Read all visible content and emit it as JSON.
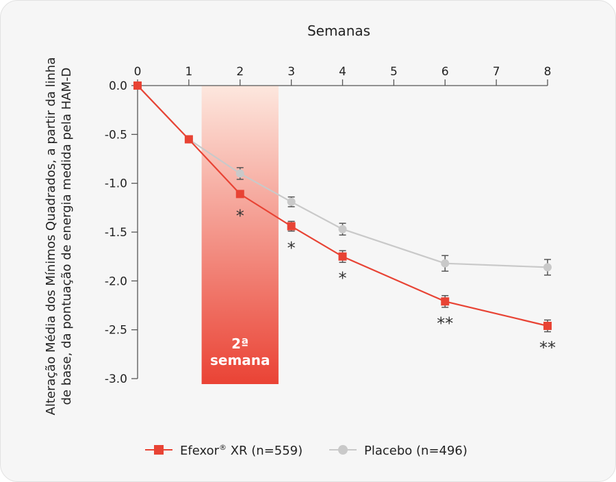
{
  "chart_data": {
    "type": "line",
    "xlabel": "Semanas",
    "ylabel_lines": [
      "Alteração Média dos Mínimos Quadrados, a partir da linha",
      "de base, da pontuação de energia medida pela HAM-D"
    ],
    "x_ticks": [
      0,
      1,
      2,
      3,
      4,
      5,
      6,
      7,
      8
    ],
    "y_ticks": [
      "0.0",
      "-0.5",
      "-1.0",
      "-1.5",
      "-2.0",
      "-2.5",
      "-3.0"
    ],
    "xlim": [
      0,
      8
    ],
    "ylim": [
      -3.0,
      0.0
    ],
    "grid": false,
    "legend_position": "bottom-center",
    "highlight": {
      "x_range": [
        1.25,
        2.75
      ],
      "label_line1": "2ª",
      "label_line2": "semana",
      "color_top": "#fde7de",
      "color_bottom": "#ea4335"
    },
    "series": [
      {
        "name": "Efexor® XR (n=559)",
        "legend_label": "Efexor",
        "legend_sup": "®",
        "legend_suffix": " XR (n=559)",
        "color": "#e84334",
        "marker": "square",
        "x": [
          0,
          1,
          2,
          3,
          4,
          6,
          8
        ],
        "y": [
          0.0,
          -0.55,
          -1.11,
          -1.44,
          -1.75,
          -2.21,
          -2.46
        ],
        "err": [
          0,
          0,
          0,
          0.05,
          0.06,
          0.06,
          0.06
        ]
      },
      {
        "name": "Placebo (n=496)",
        "legend_label": "Placebo (n=496)",
        "legend_sup": "",
        "legend_suffix": "",
        "color": "#c9c9c9",
        "marker": "circle",
        "x": [
          0,
          1,
          2,
          3,
          4,
          6,
          8
        ],
        "y": [
          0.0,
          -0.55,
          -0.9,
          -1.19,
          -1.47,
          -1.82,
          -1.86
        ],
        "err": [
          0,
          0,
          0.06,
          0.05,
          0.06,
          0.08,
          0.08
        ]
      }
    ],
    "error_bar_color": "#555555",
    "significance": [
      {
        "x": 2,
        "y": -1.11,
        "label": "*"
      },
      {
        "x": 3,
        "y": -1.44,
        "label": "*"
      },
      {
        "x": 4,
        "y": -1.75,
        "label": "*"
      },
      {
        "x": 6,
        "y": -2.21,
        "label": "**"
      },
      {
        "x": 8,
        "y": -2.46,
        "label": "**"
      }
    ]
  }
}
